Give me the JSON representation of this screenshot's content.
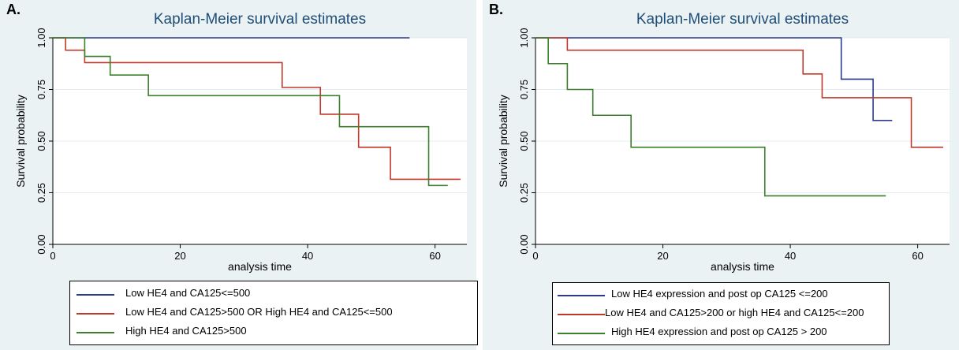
{
  "chart_data": [
    {
      "panel_label": "A.",
      "type": "line",
      "step": true,
      "title": "Kaplan-Meier survival estimates",
      "xlabel": "analysis time",
      "ylabel": "Survival probability",
      "xlim": [
        0,
        65
      ],
      "ylim": [
        0,
        1
      ],
      "xticks": [
        "0",
        "20",
        "40",
        "60"
      ],
      "yticks": [
        "0.00",
        "0.25",
        "0.50",
        "0.75",
        "1.00"
      ],
      "grid": "horizontal",
      "legend_position": "bottom",
      "series": [
        {
          "name": "Low HE4 and CA125<=500",
          "color": "#2b3a8f",
          "x": [
            0,
            56
          ],
          "y": [
            1.0,
            1.0
          ]
        },
        {
          "name": "Low HE4 and CA125>500 OR High HE4 and CA125<=500",
          "color": "#c0392b",
          "x": [
            0,
            2,
            5,
            36,
            42,
            48,
            53,
            64
          ],
          "y": [
            1.0,
            0.94,
            0.88,
            0.76,
            0.63,
            0.47,
            0.315,
            0.315
          ]
        },
        {
          "name": "High HE4 and CA125>500",
          "color": "#3c7f2d",
          "x": [
            0,
            5,
            9,
            15,
            45,
            59,
            62
          ],
          "y": [
            1.0,
            0.91,
            0.82,
            0.72,
            0.57,
            0.285,
            0.285
          ]
        }
      ]
    },
    {
      "panel_label": "B.",
      "type": "line",
      "step": true,
      "title": "Kaplan-Meier survival estimates",
      "xlabel": "analysis time",
      "ylabel": "Survival probability",
      "xlim": [
        0,
        65
      ],
      "ylim": [
        0,
        1
      ],
      "xticks": [
        "0",
        "20",
        "40",
        "60"
      ],
      "yticks": [
        "0.00",
        "0.25",
        "0.50",
        "0.75",
        "1.00"
      ],
      "grid": "horizontal",
      "legend_position": "bottom",
      "series": [
        {
          "name": "Low HE4 expression and post op CA125 <=200",
          "color": "#2b3a8f",
          "x": [
            0,
            48,
            53,
            56
          ],
          "y": [
            1.0,
            0.8,
            0.6,
            0.6
          ]
        },
        {
          "name": "Low HE4 and CA125>200 or high HE4 and CA125<=200",
          "color": "#c0392b",
          "x": [
            0,
            5,
            42,
            45,
            59,
            64
          ],
          "y": [
            1.0,
            0.94,
            0.825,
            0.71,
            0.47,
            0.47
          ]
        },
        {
          "name": "High HE4 expression and post op CA125 > 200",
          "color": "#3c7f2d",
          "x": [
            0,
            2,
            5,
            9,
            15,
            36,
            55
          ],
          "y": [
            1.0,
            0.875,
            0.75,
            0.625,
            0.47,
            0.235,
            0.235
          ]
        }
      ]
    }
  ]
}
